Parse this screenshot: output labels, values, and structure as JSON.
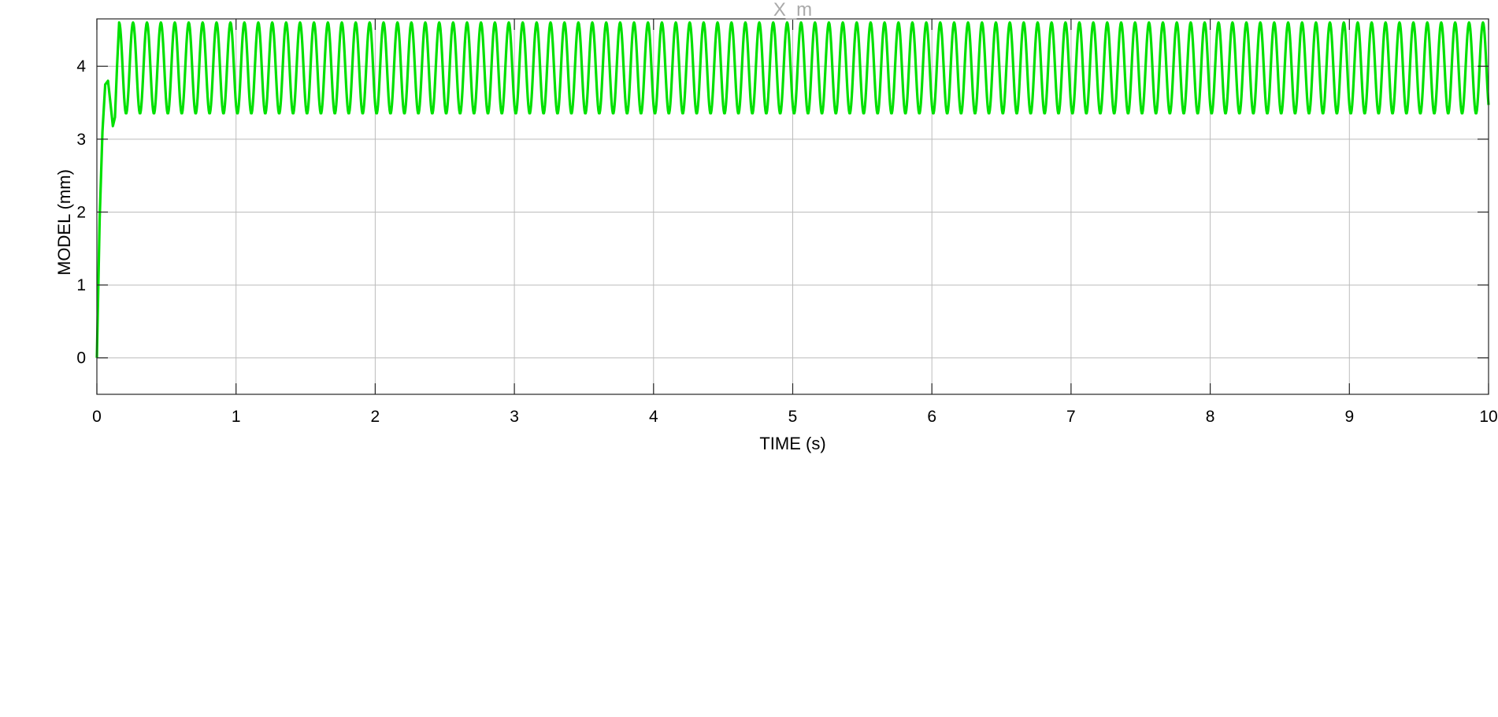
{
  "chart_data": {
    "type": "line",
    "title": "X_m",
    "xlabel": "TIME (s)",
    "ylabel": "MODEL (mm)",
    "xlim": [
      0,
      10
    ],
    "ylim": [
      -0.5,
      4.65
    ],
    "xticks": [
      0,
      1,
      2,
      3,
      4,
      5,
      6,
      7,
      8,
      9,
      10
    ],
    "xtick_labels": [
      "0",
      "1",
      "2",
      "3",
      "4",
      "5",
      "6",
      "7",
      "8",
      "9",
      "10"
    ],
    "yticks": [
      0,
      1,
      2,
      3,
      4
    ],
    "ytick_labels": [
      "0",
      "1",
      "2",
      "3",
      "4"
    ],
    "grid": true,
    "legend": "none",
    "colors": {
      "series": "#00e000",
      "title": "#a9a9a9",
      "grid": "#bcbcbc",
      "axis": "#262626"
    },
    "series": [
      {
        "name": "",
        "x": [
          0,
          0.02,
          0.04,
          0.06,
          0.08,
          0.1,
          0.115,
          0.13,
          0.145,
          0.16,
          0.2,
          0.25,
          0.3,
          0.35,
          0.4,
          0.45,
          0.5,
          0.55,
          0.6,
          0.65,
          0.7,
          0.75,
          0.8,
          0.85,
          0.9,
          0.95,
          1.0,
          2.0,
          3.0,
          4.0,
          5.0,
          6.0,
          7.0,
          8.0,
          9.0,
          10.0
        ],
        "y": [
          0,
          1.9,
          3.1,
          3.75,
          3.8,
          3.45,
          3.18,
          3.3,
          4.0,
          4.6,
          3.35,
          4.6,
          3.35,
          4.6,
          3.35,
          4.6,
          3.35,
          4.6,
          3.35,
          4.6,
          3.35,
          4.6,
          3.35,
          4.6,
          3.35,
          4.6,
          3.35,
          3.35,
          3.35,
          3.35,
          3.35,
          3.35,
          3.35,
          3.35,
          3.35,
          3.5
        ],
        "steady_state": {
          "min": 3.35,
          "max": 4.6,
          "period_s": 0.1,
          "start_s": 0.16
        }
      }
    ]
  }
}
